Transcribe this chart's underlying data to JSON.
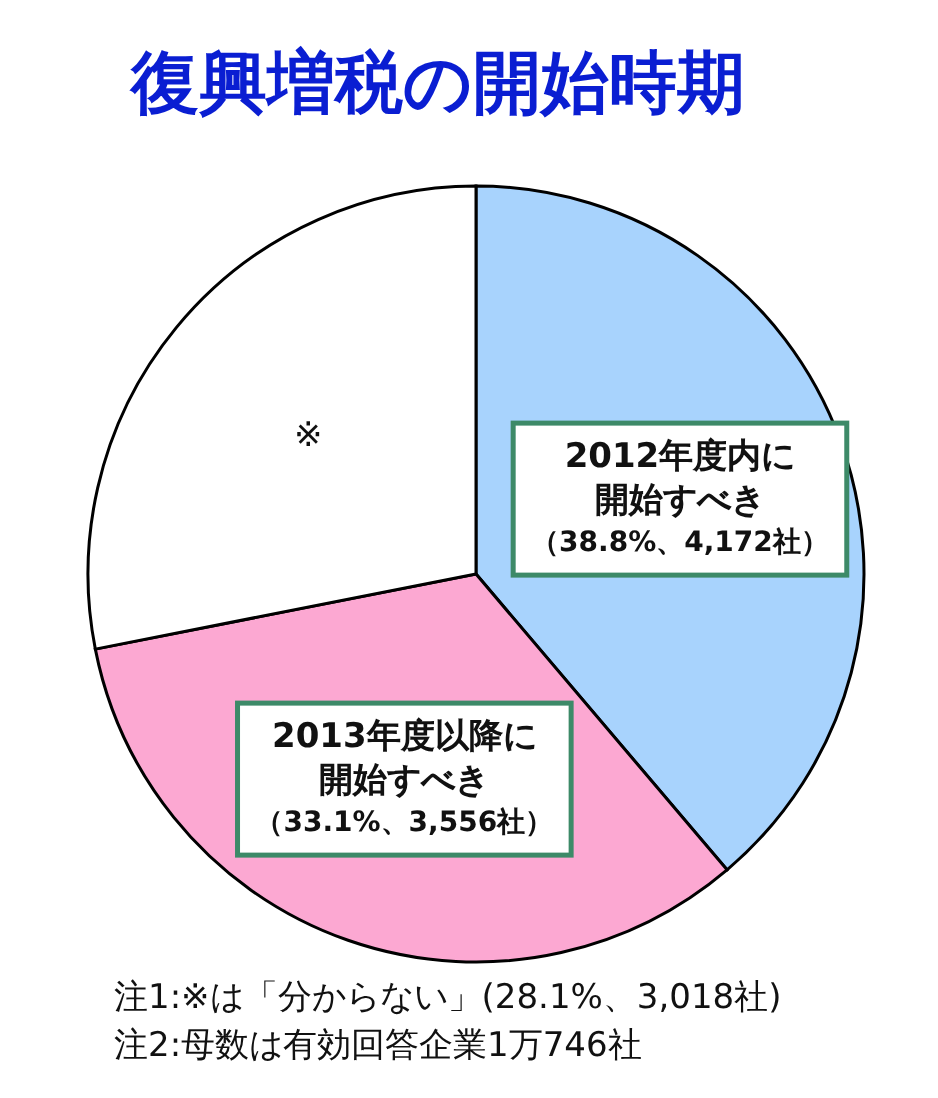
{
  "chart_data": {
    "type": "pie",
    "title": "復興増税の開始時期",
    "categories": [
      "2012年度内に開始すべき",
      "2013年度以降に開始すべき",
      "※"
    ],
    "values": [
      38.8,
      33.1,
      28.1
    ],
    "colors": [
      "#a8d3fd",
      "#fca8d2",
      "#ffffff"
    ],
    "value_labels": [
      "（38.8%、4,172社）",
      "（33.1%、3,556社）",
      null
    ],
    "annotations": [
      "注1:※は「分からない」(28.1%、3,018社)",
      "注2:母数は有効回答企業1万746社"
    ]
  }
}
